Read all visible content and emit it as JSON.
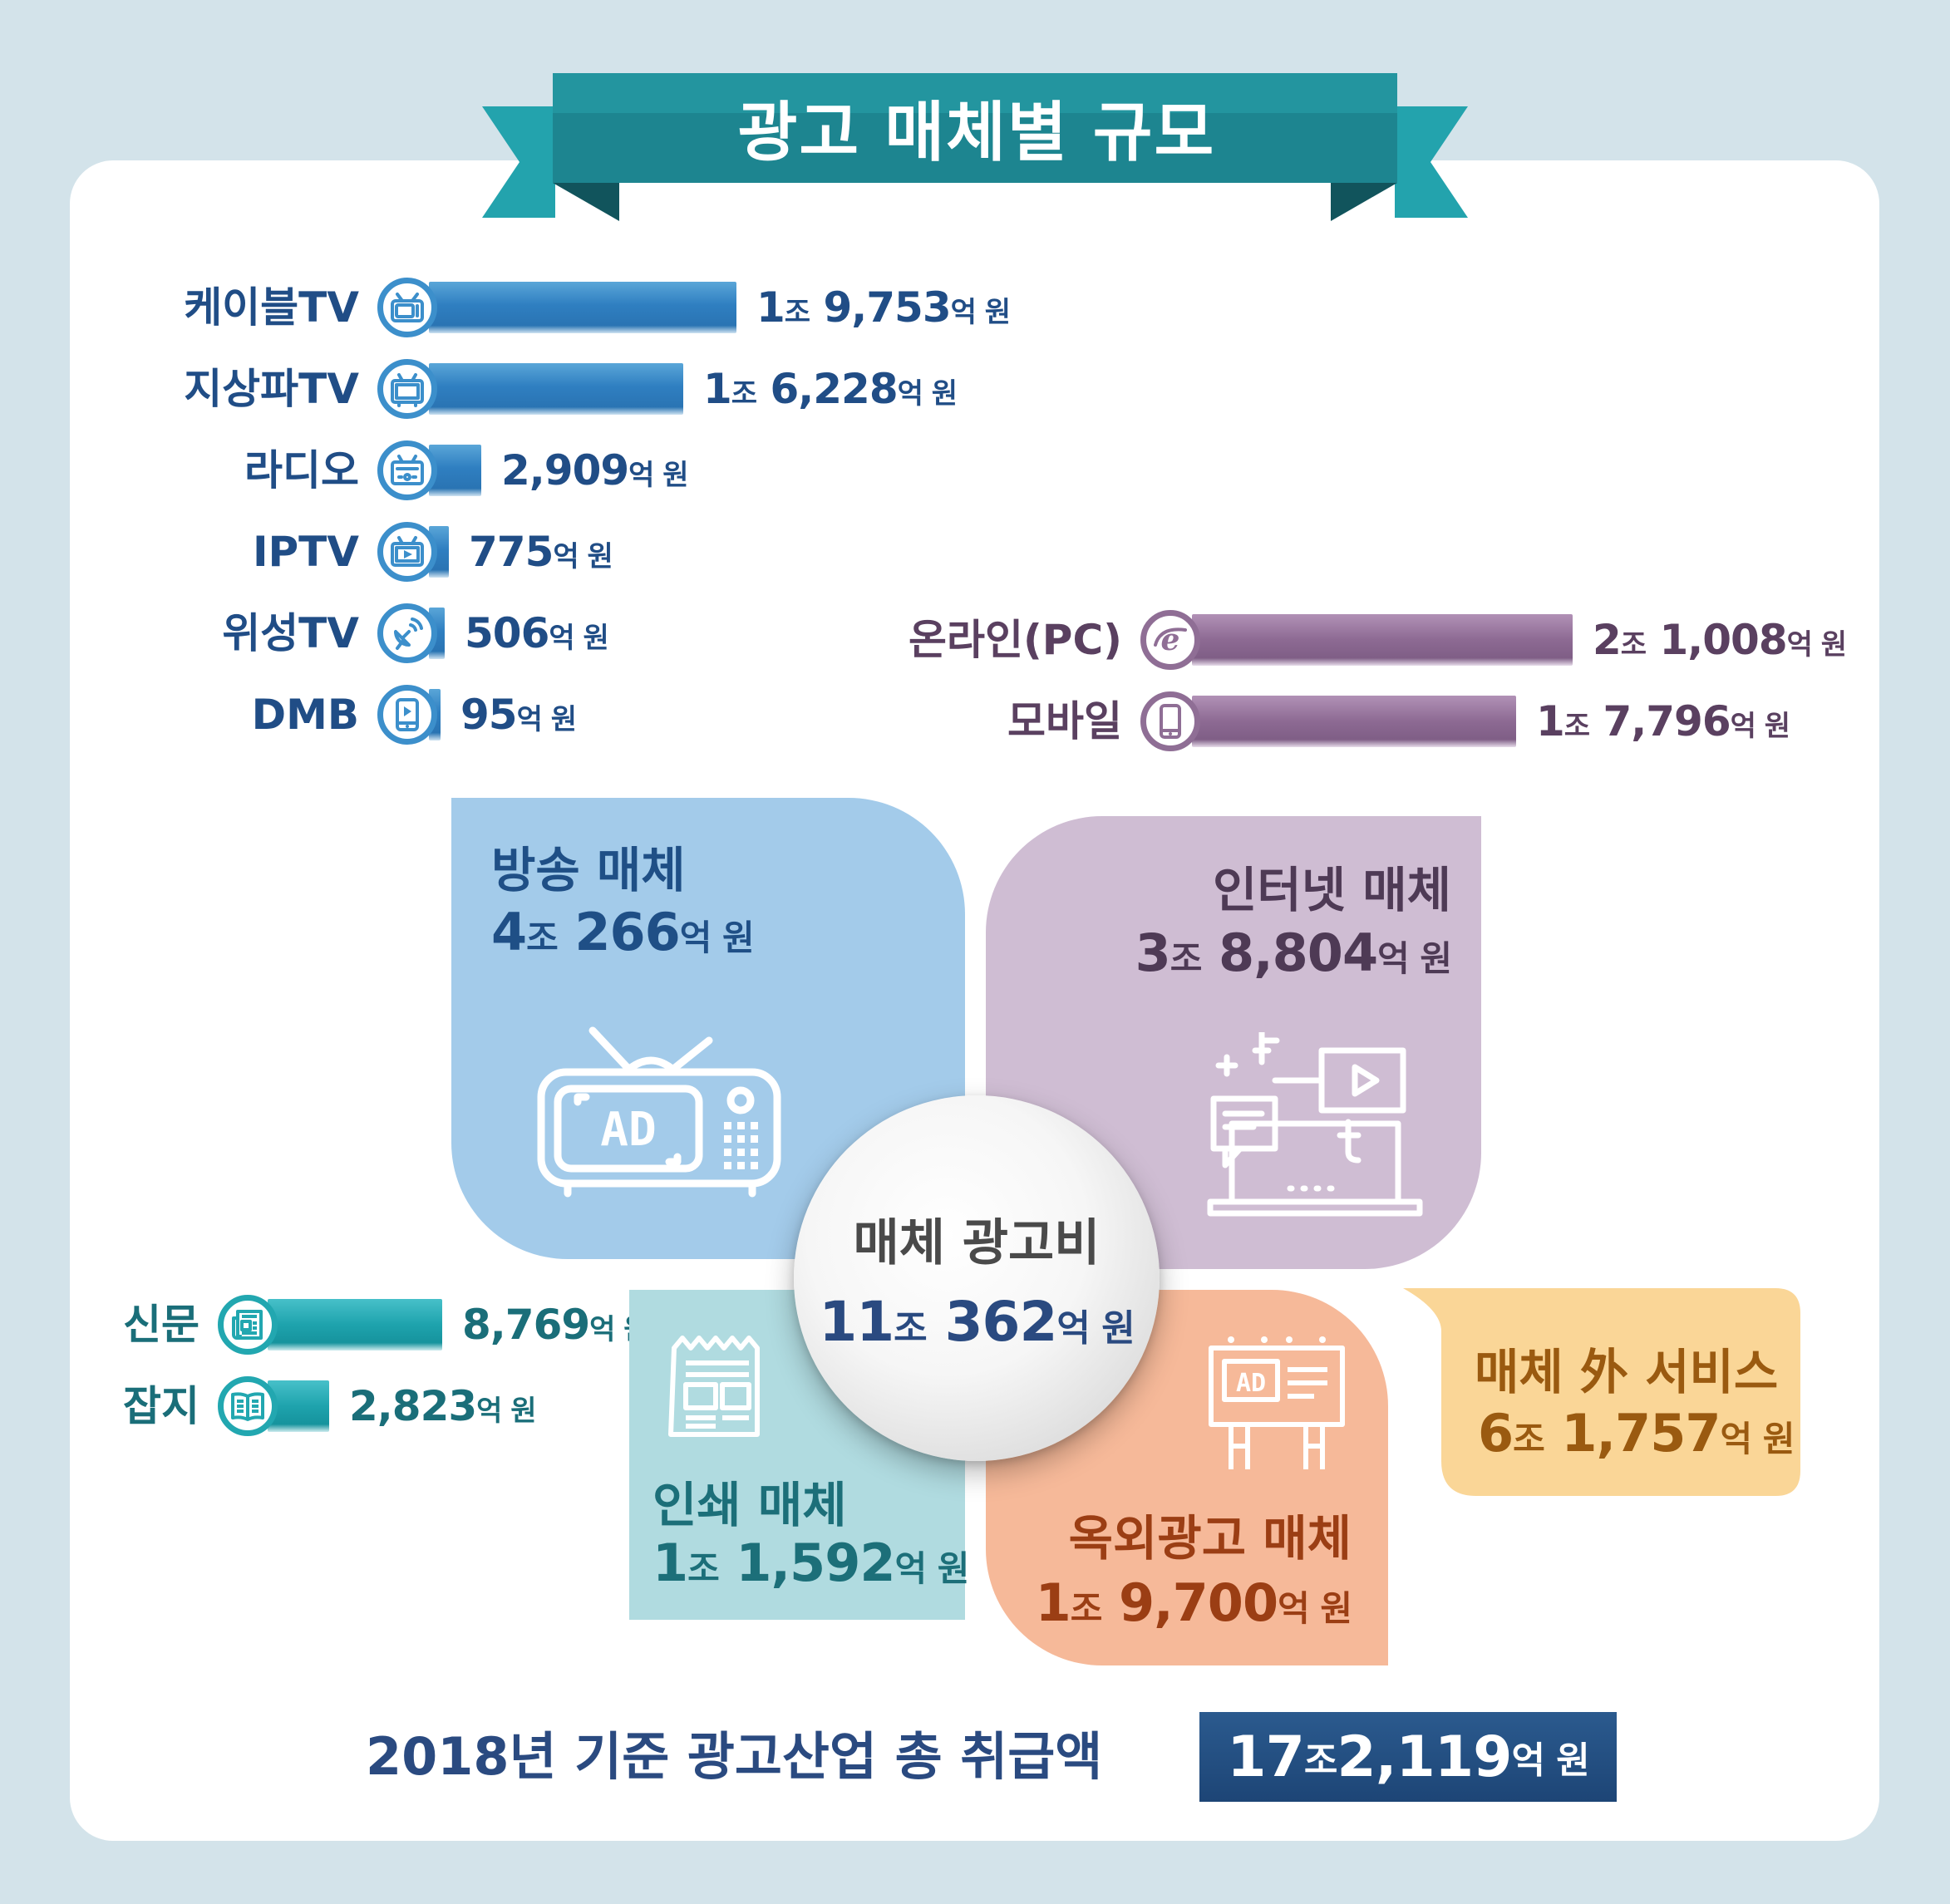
{
  "title": "광고 매체별 규모",
  "colors": {
    "background": "#d3e3ea",
    "ribbon": "#1c7f89",
    "broadcast_bar": "#2f7fc1",
    "internet_bar": "#8d6a93",
    "print_bar": "#1ea3ad",
    "broadcast_blob": "#a3cbea",
    "internet_blob": "#cfbdd3",
    "print_blob": "#b0dbe0",
    "outdoor_blob": "#f6b999",
    "nonmedia_blob": "#fad697",
    "total_box": "#1d4576"
  },
  "chart_data": {
    "type": "bar",
    "title": "광고 매체별 규모",
    "unit": "억 원",
    "groups": [
      {
        "name": "방송 매체",
        "items": [
          {
            "label": "케이블TV",
            "value": 19753,
            "value_text": "1조 9,753",
            "icon": "tv-antenna-icon"
          },
          {
            "label": "지상파TV",
            "value": 16228,
            "value_text": "1조 6,228",
            "icon": "tv-icon"
          },
          {
            "label": "라디오",
            "value": 2909,
            "value_text": "2,909",
            "icon": "radio-icon"
          },
          {
            "label": "IPTV",
            "value": 775,
            "value_text": "775",
            "icon": "tv-play-icon"
          },
          {
            "label": "위성TV",
            "value": 506,
            "value_text": "506",
            "icon": "satellite-dish-icon"
          },
          {
            "label": "DMB",
            "value": 95,
            "value_text": "95",
            "icon": "mobile-play-icon"
          }
        ]
      },
      {
        "name": "인터넷 매체",
        "items": [
          {
            "label": "온라인(PC)",
            "value": 21008,
            "value_text": "2조 1,008",
            "icon": "browser-e-icon"
          },
          {
            "label": "모바일",
            "value": 17796,
            "value_text": "1조 7,796",
            "icon": "smartphone-icon"
          }
        ]
      },
      {
        "name": "인쇄 매체",
        "items": [
          {
            "label": "신문",
            "value": 8769,
            "value_text": "8,769",
            "icon": "newspaper-icon"
          },
          {
            "label": "잡지",
            "value": 2823,
            "value_text": "2,823",
            "icon": "magazine-icon"
          }
        ]
      }
    ],
    "categories": [
      {
        "name": "방송 매체",
        "amount_main": "4",
        "amount_jo": "조",
        "amount_rest": " 266",
        "amount_unit": "억 원",
        "value": 40266
      },
      {
        "name": "인터넷 매체",
        "amount_main": "3",
        "amount_jo": "조",
        "amount_rest": " 8,804",
        "amount_unit": "억 원",
        "value": 38804
      },
      {
        "name": "인쇄 매체",
        "amount_main": "1",
        "amount_jo": "조",
        "amount_rest": " 1,592",
        "amount_unit": "억 원",
        "value": 11592
      },
      {
        "name": "옥외광고 매체",
        "amount_main": "1",
        "amount_jo": "조",
        "amount_rest": " 9,700",
        "amount_unit": "억 원",
        "value": 19700
      },
      {
        "name": "매체 外 서비스",
        "amount_main": "6",
        "amount_jo": "조",
        "amount_rest": " 1,757",
        "amount_unit": "억 원",
        "value": 61757
      }
    ],
    "center": {
      "title": "매체 광고비",
      "amount_main": "11",
      "amount_jo": "조",
      "amount_rest": " 362",
      "amount_unit": "억 원",
      "value": 110362
    },
    "total": {
      "label": "2018년 기준 광고산업 총 취급액",
      "amount_main": "17",
      "amount_jo": "조",
      "amount_rest": " 2,119",
      "amount_unit": "억 원",
      "value": 172119
    }
  }
}
